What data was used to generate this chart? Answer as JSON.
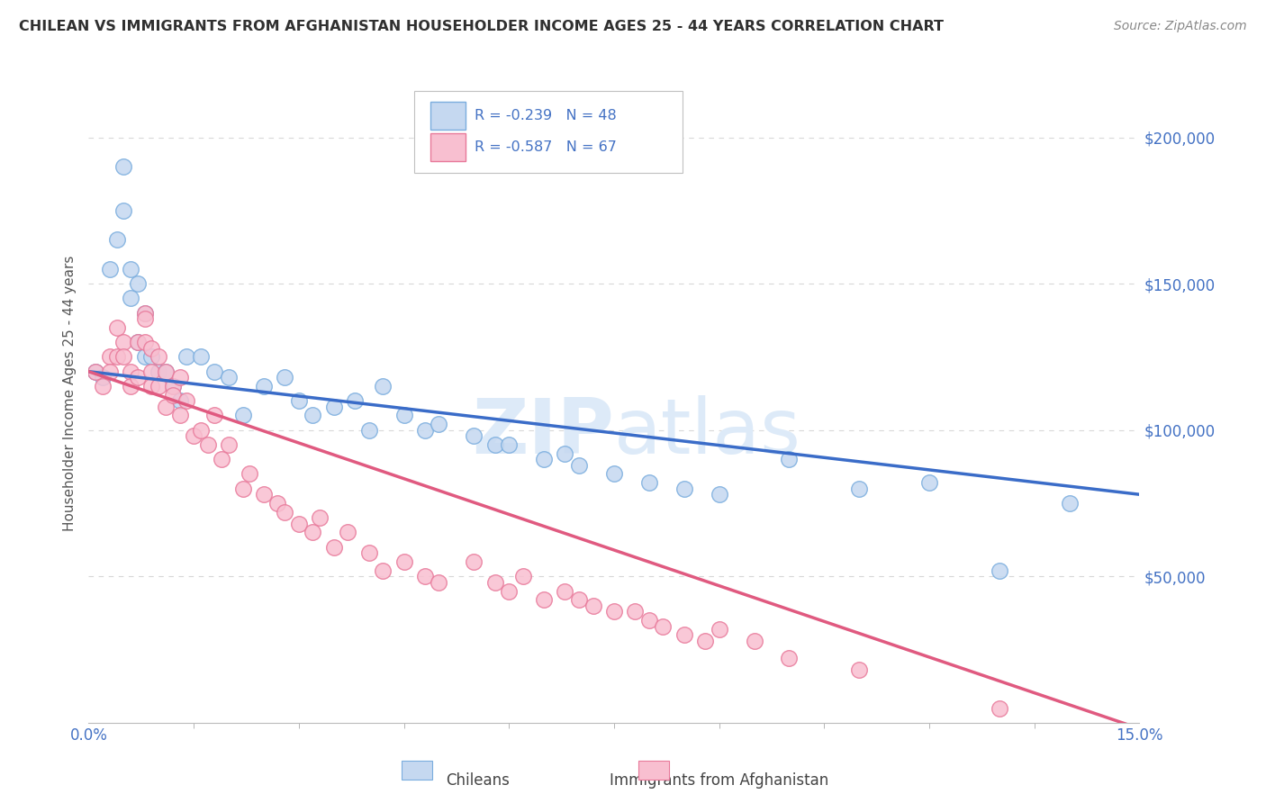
{
  "title": "CHILEAN VS IMMIGRANTS FROM AFGHANISTAN HOUSEHOLDER INCOME AGES 25 - 44 YEARS CORRELATION CHART",
  "source": "Source: ZipAtlas.com",
  "xlabel_chileans": "Chileans",
  "xlabel_afghanistan": "Immigrants from Afghanistan",
  "ylabel": "Householder Income Ages 25 - 44 years",
  "legend_1": "R = -0.239   N = 48",
  "legend_2": "R = -0.587   N = 67",
  "xmin": 0.0,
  "xmax": 0.15,
  "ymin": 0,
  "ymax": 225000,
  "yticks": [
    0,
    50000,
    100000,
    150000,
    200000
  ],
  "ytick_labels": [
    "",
    "$50,000",
    "$100,000",
    "$150,000",
    "$200,000"
  ],
  "color_chilean": "#c5d8f0",
  "color_chilean_edge": "#7aadde",
  "color_afg": "#f8bfd0",
  "color_afg_edge": "#e8799a",
  "color_trendline_chilean": "#3a6cc8",
  "color_trendline_afg": "#e05a80",
  "color_axis_labels": "#4472c4",
  "color_gridlines": "#d8d8d8",
  "color_title": "#303030",
  "watermark_color": "#ddeaf8",
  "chilean_x": [
    0.001,
    0.002,
    0.003,
    0.004,
    0.005,
    0.005,
    0.006,
    0.006,
    0.007,
    0.007,
    0.008,
    0.008,
    0.009,
    0.01,
    0.011,
    0.012,
    0.013,
    0.014,
    0.016,
    0.018,
    0.02,
    0.022,
    0.025,
    0.028,
    0.03,
    0.032,
    0.035,
    0.038,
    0.04,
    0.042,
    0.045,
    0.048,
    0.05,
    0.055,
    0.058,
    0.06,
    0.065,
    0.068,
    0.07,
    0.075,
    0.08,
    0.085,
    0.09,
    0.1,
    0.11,
    0.12,
    0.13,
    0.14
  ],
  "chilean_y": [
    120000,
    118000,
    155000,
    165000,
    175000,
    190000,
    155000,
    145000,
    150000,
    130000,
    125000,
    140000,
    125000,
    120000,
    120000,
    115000,
    110000,
    125000,
    125000,
    120000,
    118000,
    105000,
    115000,
    118000,
    110000,
    105000,
    108000,
    110000,
    100000,
    115000,
    105000,
    100000,
    102000,
    98000,
    95000,
    95000,
    90000,
    92000,
    88000,
    85000,
    82000,
    80000,
    78000,
    90000,
    80000,
    82000,
    52000,
    75000
  ],
  "afg_x": [
    0.001,
    0.002,
    0.003,
    0.003,
    0.004,
    0.004,
    0.005,
    0.005,
    0.006,
    0.006,
    0.007,
    0.007,
    0.008,
    0.008,
    0.008,
    0.009,
    0.009,
    0.009,
    0.01,
    0.01,
    0.011,
    0.011,
    0.012,
    0.012,
    0.013,
    0.013,
    0.014,
    0.015,
    0.016,
    0.017,
    0.018,
    0.019,
    0.02,
    0.022,
    0.023,
    0.025,
    0.027,
    0.028,
    0.03,
    0.032,
    0.033,
    0.035,
    0.037,
    0.04,
    0.042,
    0.045,
    0.048,
    0.05,
    0.055,
    0.058,
    0.06,
    0.062,
    0.065,
    0.068,
    0.07,
    0.072,
    0.075,
    0.078,
    0.08,
    0.082,
    0.085,
    0.088,
    0.09,
    0.095,
    0.1,
    0.11,
    0.13
  ],
  "afg_y": [
    120000,
    115000,
    125000,
    120000,
    135000,
    125000,
    130000,
    125000,
    120000,
    115000,
    130000,
    118000,
    140000,
    138000,
    130000,
    128000,
    120000,
    115000,
    125000,
    115000,
    108000,
    120000,
    115000,
    112000,
    118000,
    105000,
    110000,
    98000,
    100000,
    95000,
    105000,
    90000,
    95000,
    80000,
    85000,
    78000,
    75000,
    72000,
    68000,
    65000,
    70000,
    60000,
    65000,
    58000,
    52000,
    55000,
    50000,
    48000,
    55000,
    48000,
    45000,
    50000,
    42000,
    45000,
    42000,
    40000,
    38000,
    38000,
    35000,
    33000,
    30000,
    28000,
    32000,
    28000,
    22000,
    18000,
    5000
  ]
}
